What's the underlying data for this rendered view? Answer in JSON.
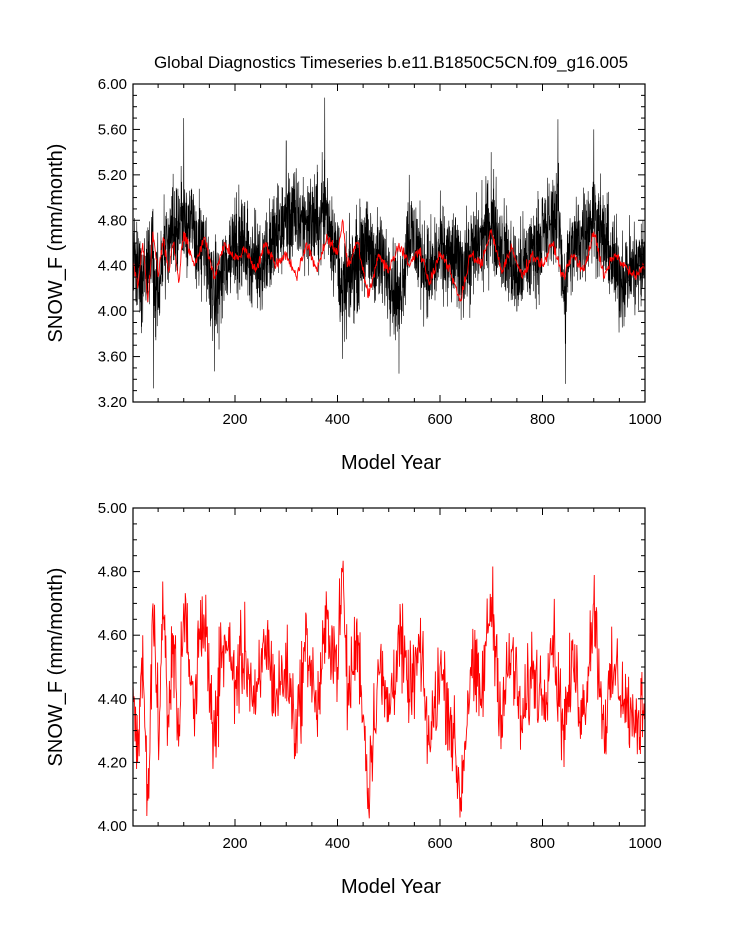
{
  "title": "Global Diagnostics Timeseries b.e11.B1850C5CN.f09_g16.005",
  "colors": {
    "monthly": "#000000",
    "annual": "#ff0000",
    "axis": "#000000"
  },
  "chart_data": [
    {
      "type": "line",
      "xlabel": "Model Year",
      "ylabel": "SNOW_F (mm/month)",
      "xlim": [
        1,
        1000
      ],
      "ylim": [
        3.2,
        6.0
      ],
      "xticks": [
        200,
        400,
        600,
        800,
        1000
      ],
      "xtick_labels": [
        "200",
        "400",
        "600",
        "800",
        "1000"
      ],
      "yticks": [
        3.2,
        3.6,
        4.0,
        4.4,
        4.8,
        5.2,
        5.6,
        6.0
      ],
      "ytick_labels": [
        "3.20",
        "3.60",
        "4.00",
        "4.40",
        "4.80",
        "5.20",
        "5.60",
        "6.00"
      ],
      "series": [
        {
          "color": "#000000",
          "description_of_values": "monthly SNOW_F, 12000 samples, mean ~4.45, range ~3.30-5.90",
          "x": [
            1,
            20,
            40,
            41,
            60,
            100,
            150,
            160,
            200,
            250,
            300,
            370,
            375,
            400,
            410,
            450,
            500,
            520,
            540,
            580,
            600,
            650,
            700,
            750,
            800,
            830,
            845,
            850,
            900,
            950,
            1000
          ],
          "y": [
            4.4,
            3.9,
            4.9,
            3.32,
            4.6,
            5.7,
            4.2,
            3.47,
            5.0,
            4.3,
            5.5,
            5.4,
            5.88,
            4.5,
            3.58,
            4.8,
            4.2,
            3.45,
            5.2,
            4.1,
            4.6,
            4.3,
            5.4,
            4.0,
            5.0,
            5.69,
            3.36,
            4.5,
            5.6,
            4.0,
            4.4
          ]
        },
        {
          "color": "#ff0000",
          "description_of_values": "annual mean SNOW_F (same as lower panel)",
          "x": [
            1,
            10,
            20,
            30,
            40,
            50,
            60,
            70,
            80,
            90,
            100,
            120,
            140,
            160,
            180,
            200,
            220,
            240,
            260,
            280,
            300,
            320,
            340,
            360,
            380,
            400,
            410,
            420,
            440,
            460,
            480,
            500,
            520,
            540,
            560,
            580,
            600,
            620,
            640,
            660,
            680,
            700,
            720,
            740,
            760,
            780,
            800,
            820,
            840,
            860,
            880,
            900,
            920,
            940,
            960,
            980,
            1000
          ],
          "y": [
            4.45,
            4.2,
            4.6,
            4.08,
            4.7,
            4.3,
            4.65,
            4.35,
            4.6,
            4.25,
            4.7,
            4.4,
            4.65,
            4.3,
            4.6,
            4.45,
            4.55,
            4.35,
            4.6,
            4.4,
            4.5,
            4.3,
            4.6,
            4.35,
            4.65,
            4.5,
            4.8,
            4.4,
            4.6,
            4.12,
            4.5,
            4.35,
            4.6,
            4.4,
            4.55,
            4.25,
            4.5,
            4.35,
            4.09,
            4.5,
            4.4,
            4.72,
            4.35,
            4.55,
            4.3,
            4.5,
            4.4,
            4.6,
            4.3,
            4.5,
            4.35,
            4.7,
            4.3,
            4.5,
            4.4,
            4.3,
            4.4
          ]
        }
      ]
    },
    {
      "type": "line",
      "xlabel": "Model Year",
      "ylabel": "SNOW_F (mm/month)",
      "xlim": [
        1,
        1000
      ],
      "ylim": [
        4.0,
        5.0
      ],
      "xticks": [
        200,
        400,
        600,
        800,
        1000
      ],
      "xtick_labels": [
        "200",
        "400",
        "600",
        "800",
        "1000"
      ],
      "yticks": [
        4.0,
        4.2,
        4.4,
        4.6,
        4.8,
        5.0
      ],
      "ytick_labels": [
        "4.00",
        "4.20",
        "4.40",
        "4.60",
        "4.80",
        "5.00"
      ],
      "series": [
        {
          "color": "#ff0000",
          "description_of_values": "annual mean SNOW_F, 1000 samples, range ~4.08-4.81",
          "x": [
            1,
            10,
            20,
            30,
            40,
            50,
            60,
            70,
            80,
            90,
            100,
            120,
            140,
            160,
            180,
            200,
            220,
            240,
            260,
            280,
            300,
            320,
            340,
            360,
            380,
            400,
            410,
            420,
            440,
            460,
            480,
            500,
            520,
            540,
            560,
            580,
            600,
            620,
            640,
            660,
            680,
            700,
            720,
            740,
            760,
            780,
            800,
            820,
            840,
            860,
            880,
            900,
            920,
            940,
            960,
            980,
            1000
          ],
          "y": [
            4.45,
            4.2,
            4.6,
            4.08,
            4.7,
            4.3,
            4.65,
            4.35,
            4.6,
            4.25,
            4.7,
            4.4,
            4.65,
            4.3,
            4.6,
            4.45,
            4.55,
            4.35,
            4.6,
            4.4,
            4.5,
            4.3,
            4.6,
            4.35,
            4.65,
            4.5,
            4.8,
            4.4,
            4.6,
            4.12,
            4.5,
            4.35,
            4.6,
            4.4,
            4.55,
            4.25,
            4.5,
            4.35,
            4.09,
            4.5,
            4.4,
            4.72,
            4.35,
            4.55,
            4.3,
            4.5,
            4.4,
            4.6,
            4.3,
            4.5,
            4.35,
            4.7,
            4.3,
            4.5,
            4.4,
            4.3,
            4.4
          ]
        }
      ]
    }
  ]
}
